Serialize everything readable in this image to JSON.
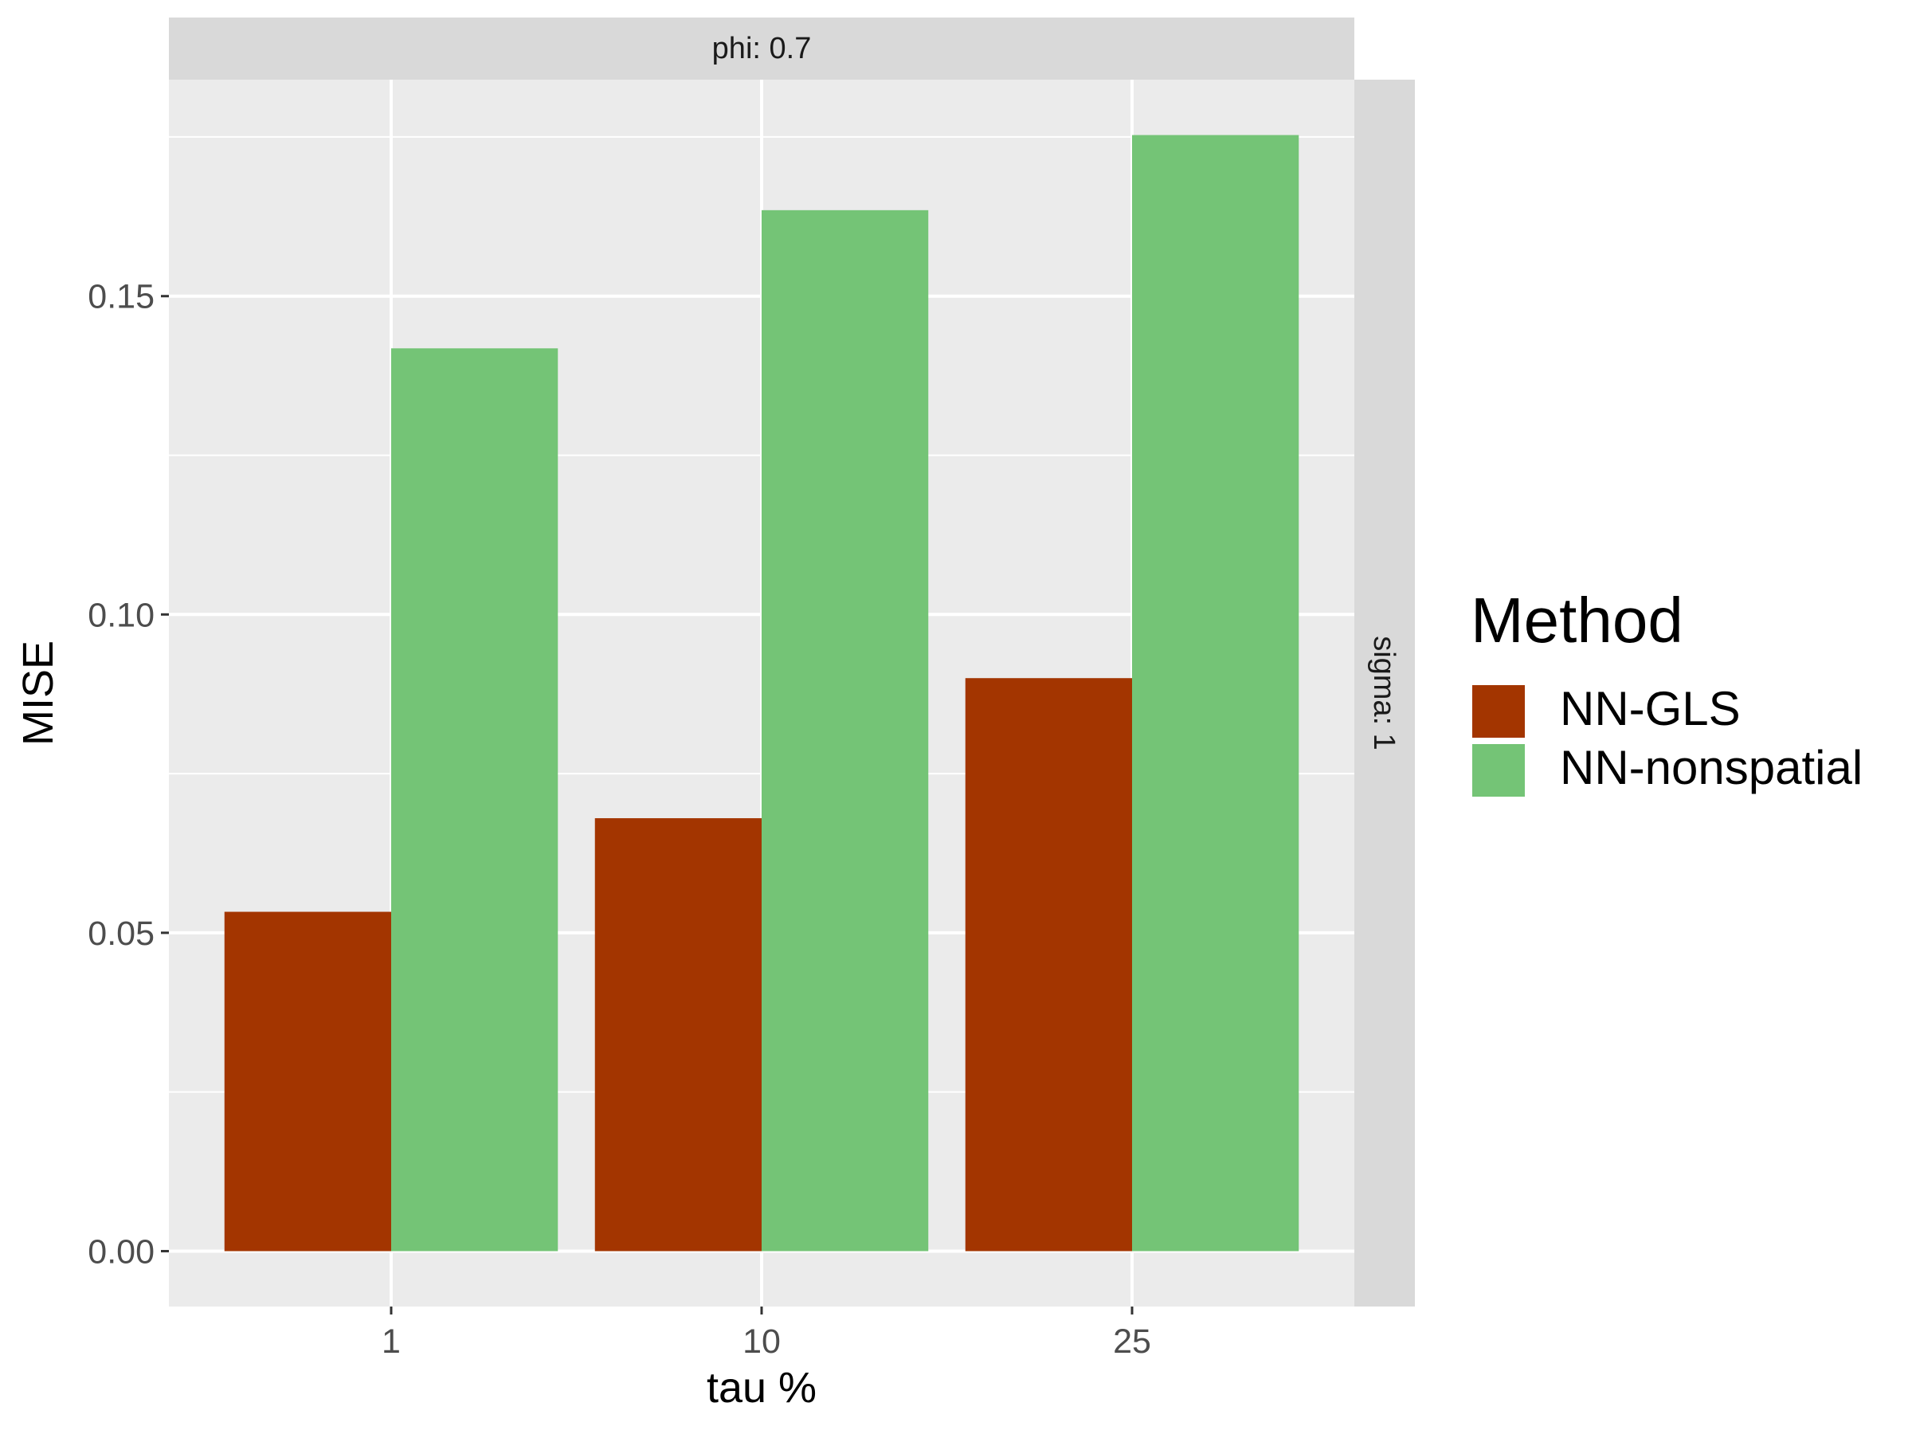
{
  "chart_data": {
    "type": "bar",
    "facet_top_label": "phi: 0.7",
    "facet_right_label": "sigma: 1",
    "xlabel": "tau %",
    "ylabel": "MISE",
    "categories": [
      "1",
      "10",
      "25"
    ],
    "series": [
      {
        "name": "NN-GLS",
        "values": [
          0.0533,
          0.068,
          0.09
        ],
        "color": "#A33500"
      },
      {
        "name": "NN-nonspatial",
        "values": [
          0.1418,
          0.1635,
          0.1753
        ],
        "color": "#74C476"
      }
    ],
    "yticks": [
      "0.00",
      "0.05",
      "0.10",
      "0.15"
    ],
    "ylim": [
      -0.0087,
      0.184
    ],
    "legend": {
      "title": "Method",
      "placement": "right"
    },
    "grid": true
  }
}
